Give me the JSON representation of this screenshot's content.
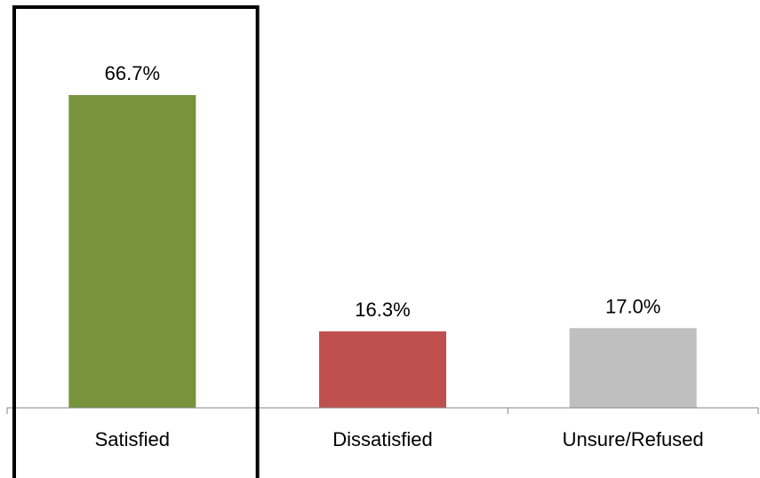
{
  "chart_data": {
    "type": "bar",
    "title": "",
    "xlabel": "",
    "ylabel": "",
    "categories": [
      "Satisfied",
      "Dissatisfied",
      "Unsure/Refused"
    ],
    "values": [
      66.7,
      16.3,
      17.0
    ],
    "data_labels": [
      "66.7%",
      "16.3%",
      "17.0%"
    ],
    "bar_colors": [
      "#77933c",
      "#c0504d",
      "#bfbfbf"
    ],
    "ylim": [
      0,
      80
    ],
    "grid": false,
    "legend": "none",
    "highlight": {
      "category": "Satisfied",
      "style": "black outline box"
    }
  }
}
